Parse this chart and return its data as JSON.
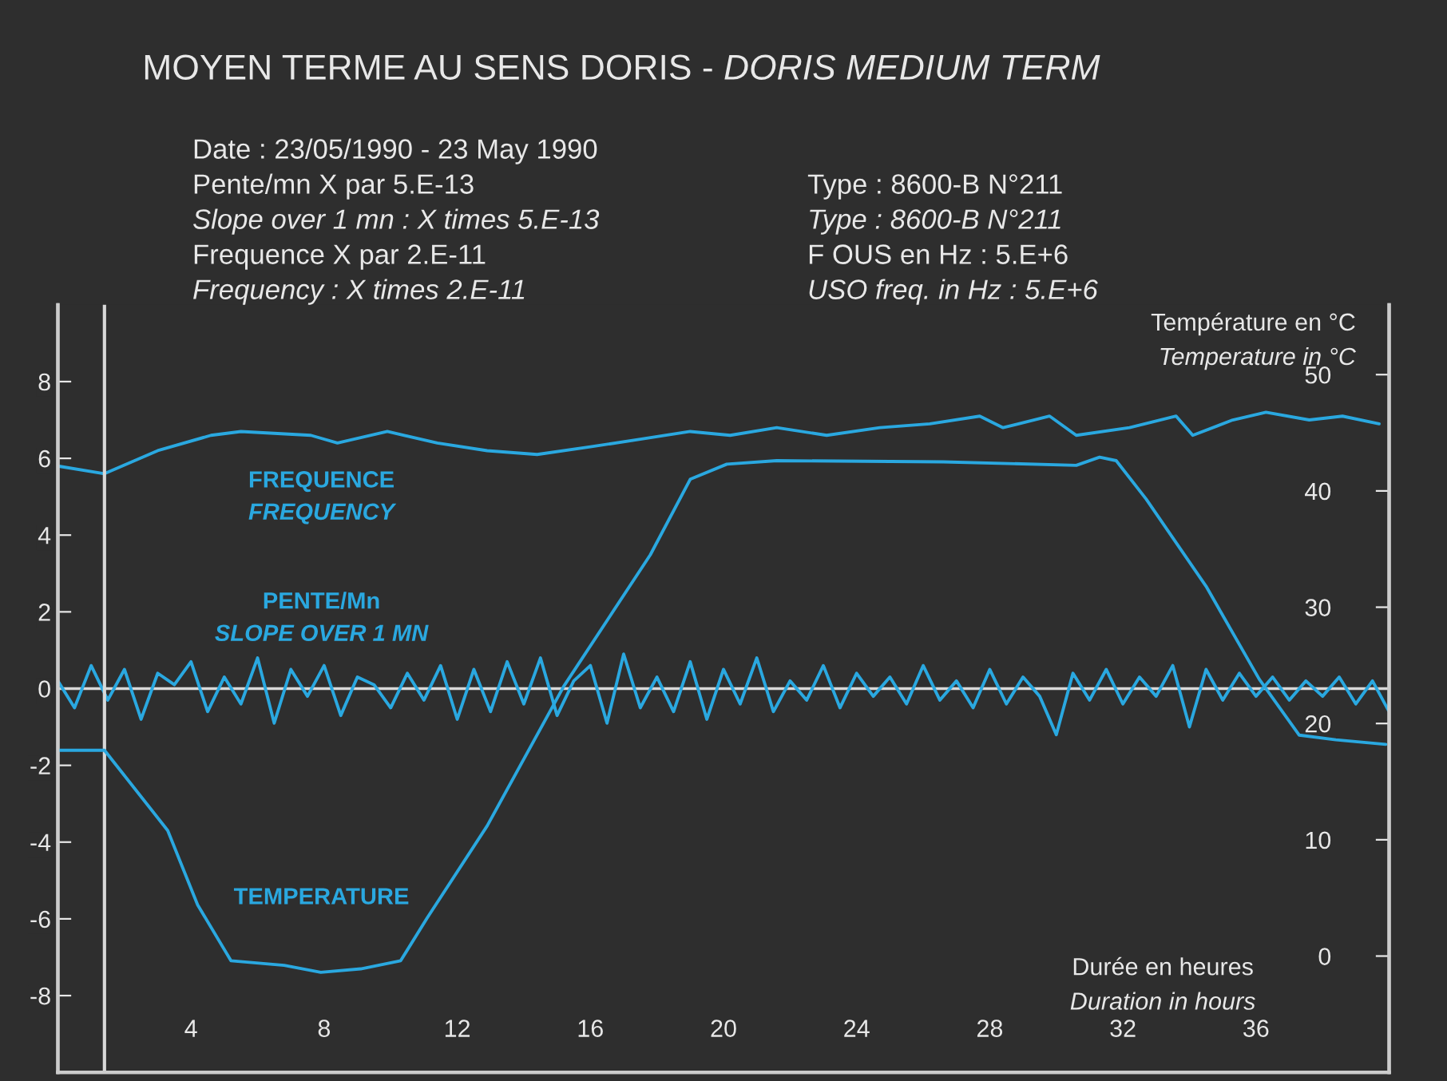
{
  "chart_data": {
    "type": "line",
    "title": "MOYEN TERME AU SENS DORIS - DORIS MEDIUM TERM",
    "xlabel": "Durée en heures\nDuration in hours",
    "y2label": "Température en °C\nTemperature in °C",
    "annotations": [
      "Date : 23/05/1990 - 23 May 1990",
      "Pente/mn X par 5.E-13",
      "Slope over 1 mn : X times 5.E-13",
      "Frequence X par 2.E-11",
      "Frequency : X times 2.E-11",
      "Type : 8600-B N°211",
      "Type : 8600-B N°211",
      "F OUS en Hz : 5.E+6",
      "USO freq. in Hz : 5.E+6"
    ],
    "xlim": [
      0,
      40
    ],
    "xticks": [
      4,
      8,
      12,
      16,
      20,
      24,
      28,
      32,
      36
    ],
    "ylim": [
      -10,
      10
    ],
    "yticks": [
      -8,
      -6,
      -4,
      -2,
      0,
      2,
      4,
      6,
      8
    ],
    "y2lim": [
      -10,
      56
    ],
    "y2ticks": [
      0,
      10,
      20,
      30,
      40,
      50
    ],
    "grid": false,
    "marker": "none",
    "line_style": "solid",
    "ref_lines": [
      {
        "axis": "y",
        "value": 0,
        "color": "#d8d8d8"
      },
      {
        "axis": "x",
        "value": 1.4,
        "color": "#d8d8d8"
      }
    ],
    "series": [
      {
        "name": "FREQUENCE\nFREQUENCY",
        "color": "#2aa8e0",
        "x": [
          0,
          1.4,
          3.0,
          4.6,
          5.5,
          7.6,
          8.4,
          9.9,
          11.4,
          12.9,
          14.4,
          16.0,
          17.5,
          19.0,
          20.2,
          21.6,
          23.1,
          24.7,
          26.2,
          27.7,
          28.4,
          29.8,
          30.6,
          32.2,
          33.6,
          34.1,
          35.3,
          36.3,
          37.6,
          38.6,
          39.7
        ],
        "values": [
          5.8,
          5.6,
          6.2,
          6.6,
          6.7,
          6.6,
          6.4,
          6.7,
          6.4,
          6.2,
          6.1,
          6.3,
          6.5,
          6.7,
          6.6,
          6.8,
          6.6,
          6.8,
          6.9,
          7.1,
          6.8,
          7.1,
          6.6,
          6.8,
          7.1,
          6.6,
          7.0,
          7.2,
          7.0,
          7.1,
          6.9
        ]
      },
      {
        "name": "PENTE/Mn\nSLOPE OVER 1 MN",
        "color": "#2aa8e0",
        "x": [
          0,
          0.5,
          1,
          1.5,
          2,
          2.5,
          3,
          3.5,
          4,
          4.5,
          5,
          5.5,
          6,
          6.5,
          7,
          7.5,
          8,
          8.5,
          9,
          9.5,
          10,
          10.5,
          11,
          11.5,
          12,
          12.5,
          13,
          13.5,
          14,
          14.5,
          15,
          15.5,
          16,
          16.5,
          17,
          17.5,
          18,
          18.5,
          19,
          19.5,
          20,
          20.5,
          21,
          21.5,
          22,
          22.5,
          23,
          23.5,
          24,
          24.5,
          25,
          25.5,
          26,
          26.5,
          27,
          27.5,
          28,
          28.5,
          29,
          29.5,
          30,
          30.5,
          31,
          31.5,
          32,
          32.5,
          33,
          33.5,
          34,
          34.5,
          35,
          35.5,
          36,
          36.5,
          37,
          37.5,
          38,
          38.5,
          39,
          39.5,
          40
        ],
        "values": [
          0.2,
          -0.5,
          0.6,
          -0.3,
          0.5,
          -0.8,
          0.4,
          0.1,
          0.7,
          -0.6,
          0.3,
          -0.4,
          0.8,
          -0.9,
          0.5,
          -0.2,
          0.6,
          -0.7,
          0.3,
          0.1,
          -0.5,
          0.4,
          -0.3,
          0.6,
          -0.8,
          0.5,
          -0.6,
          0.7,
          -0.4,
          0.8,
          -0.7,
          0.2,
          0.6,
          -0.9,
          0.9,
          -0.5,
          0.3,
          -0.6,
          0.7,
          -0.8,
          0.5,
          -0.4,
          0.8,
          -0.6,
          0.2,
          -0.3,
          0.6,
          -0.5,
          0.4,
          -0.2,
          0.3,
          -0.4,
          0.6,
          -0.3,
          0.2,
          -0.5,
          0.5,
          -0.4,
          0.3,
          -0.2,
          -1.2,
          0.4,
          -0.3,
          0.5,
          -0.4,
          0.3,
          -0.2,
          0.6,
          -1.0,
          0.5,
          -0.3,
          0.4,
          -0.2,
          0.3,
          -0.3,
          0.2,
          -0.2,
          0.3,
          -0.4,
          0.2,
          -0.6
        ]
      },
      {
        "name": "TEMPERATURE",
        "color": "#2aa8e0",
        "axis": "y2",
        "x": [
          0,
          1.4,
          3.3,
          4.2,
          5.2,
          6.8,
          7.9,
          9.1,
          10.3,
          11.1,
          12.9,
          15.2,
          17.8,
          19.0,
          20.1,
          21.6,
          26.6,
          30.6,
          31.3,
          31.8,
          32.7,
          34.5,
          36.1,
          37.3,
          38.4,
          39.9
        ],
        "values": [
          17.7,
          17.7,
          10.8,
          4.4,
          -0.4,
          -0.8,
          -1.4,
          -1.1,
          -0.4,
          3.3,
          11.2,
          23.2,
          34.5,
          41.0,
          42.3,
          42.6,
          42.5,
          42.2,
          42.9,
          42.6,
          39.3,
          31.8,
          23.8,
          19.0,
          18.6,
          18.2
        ]
      }
    ]
  }
}
